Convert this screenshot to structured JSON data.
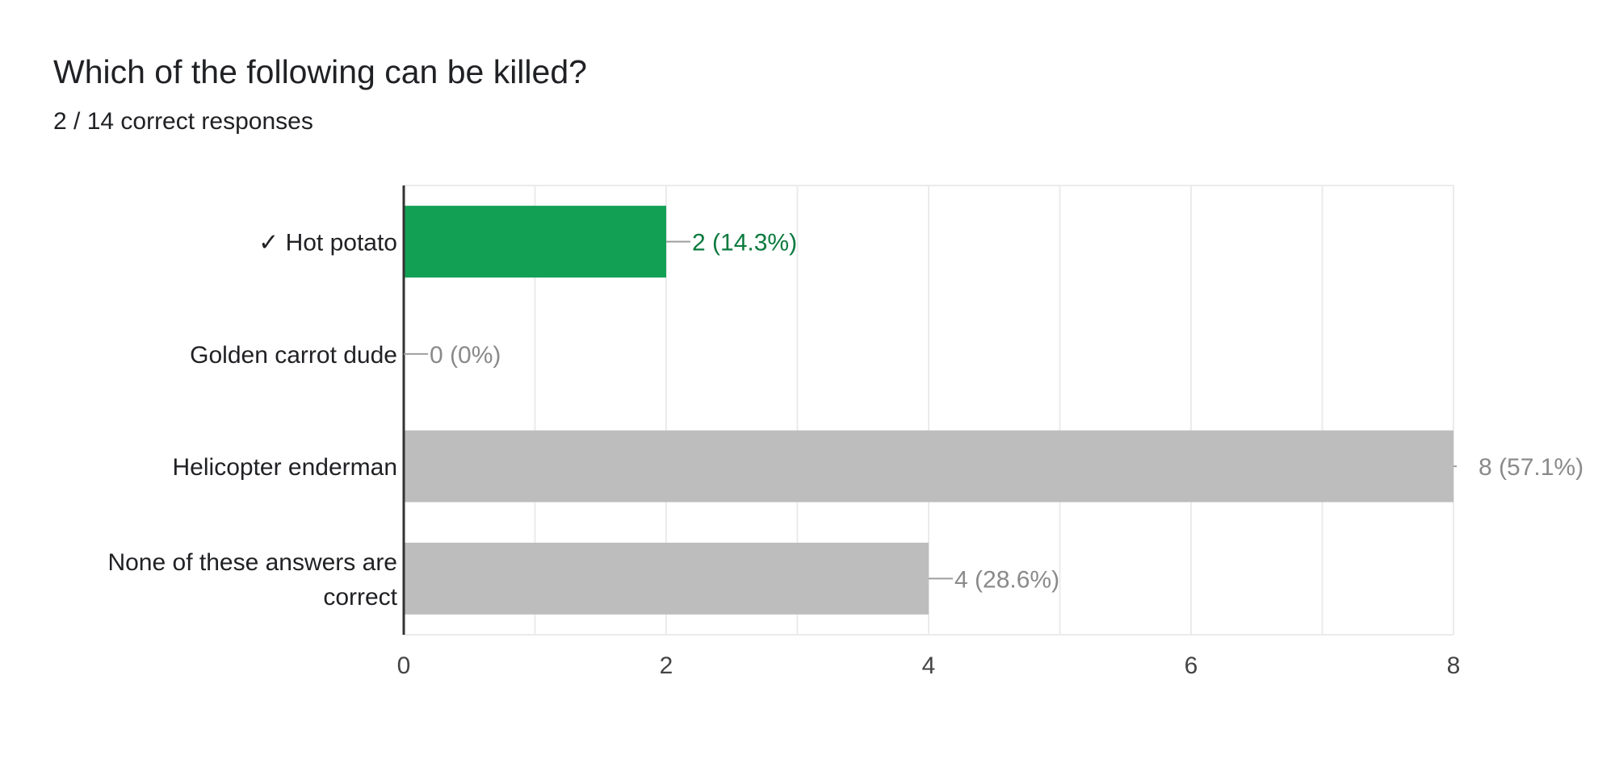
{
  "question": {
    "title": "Which of the following can be killed?",
    "summary": "2 / 14 correct responses"
  },
  "colors": {
    "correct_bar": "#12a055",
    "correct_text": "#0b7a3e",
    "other_bar": "#bdbdbd",
    "other_text": "#8a8a8a",
    "grid": "#ebebeb",
    "axis": "#333333"
  },
  "chart_data": {
    "type": "bar",
    "orientation": "horizontal",
    "title": "Which of the following can be killed?",
    "subtitle": "2 / 14 correct responses",
    "categories": [
      [
        "✓ Hot potato"
      ],
      [
        "Golden carrot dude"
      ],
      [
        "Helicopter enderman"
      ],
      [
        "None of these answers are",
        "correct"
      ]
    ],
    "values": [
      2,
      0,
      8,
      4
    ],
    "value_labels": [
      "2 (14.3%)",
      "0 (0%)",
      "8 (57.1%)",
      "4 (28.6%)"
    ],
    "correct": [
      true,
      false,
      false,
      false
    ],
    "xlim": [
      0,
      8
    ],
    "x_ticks": [
      0,
      2,
      4,
      6,
      8
    ],
    "grid": true,
    "legend": "none"
  }
}
